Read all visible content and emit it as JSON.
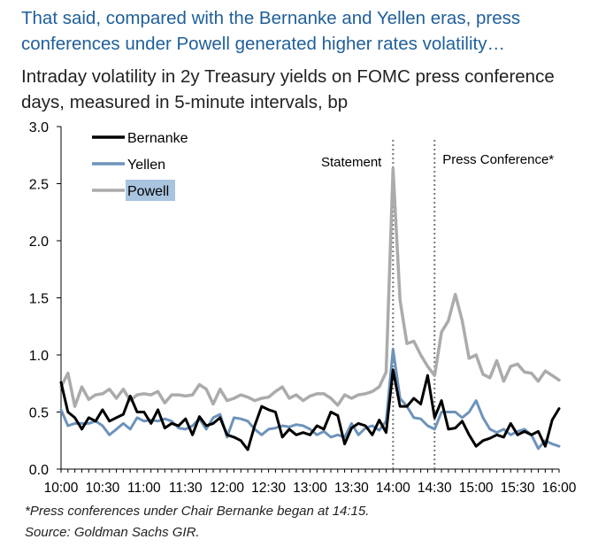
{
  "header": {
    "title": "That said, compared with the Bernanke and Yellen eras, press conferences under Powell generated higher rates volatility…",
    "subtitle": "Intraday volatility in 2y Treasury yields on FOMC press conference days, measured in 5-minute intervals, bp"
  },
  "footer": {
    "note": "*Press conferences under Chair Bernanke began at 14:15.",
    "source": "Source: Goldman Sachs GIR."
  },
  "chart_data": {
    "type": "line",
    "title": "That said, compared with the Bernanke and Yellen eras, press conferences under Powell generated higher rates volatility…",
    "subtitle": "Intraday volatility in 2y Treasury yields on FOMC press conference days, measured in 5-minute intervals, bp",
    "xlabel": "",
    "ylabel": "",
    "ylim": [
      0,
      3.0
    ],
    "yticks": [
      "0.0",
      "0.5",
      "1.0",
      "1.5",
      "2.0",
      "2.5",
      "3.0"
    ],
    "xticks": [
      "10:00",
      "10:30",
      "11:00",
      "11:30",
      "12:00",
      "12:30",
      "13:00",
      "13:30",
      "14:00",
      "14:30",
      "15:00",
      "15:30",
      "16:00"
    ],
    "x": [
      "10:00",
      "10:05",
      "10:10",
      "10:15",
      "10:20",
      "10:25",
      "10:30",
      "10:35",
      "10:40",
      "10:45",
      "10:50",
      "10:55",
      "11:00",
      "11:05",
      "11:10",
      "11:15",
      "11:20",
      "11:25",
      "11:30",
      "11:35",
      "11:40",
      "11:45",
      "11:50",
      "11:55",
      "12:00",
      "12:05",
      "12:10",
      "12:15",
      "12:20",
      "12:25",
      "12:30",
      "12:35",
      "12:40",
      "12:45",
      "12:50",
      "12:55",
      "13:00",
      "13:05",
      "13:10",
      "13:15",
      "13:20",
      "13:25",
      "13:30",
      "13:35",
      "13:40",
      "13:45",
      "13:50",
      "13:55",
      "14:00",
      "14:05",
      "14:10",
      "14:15",
      "14:20",
      "14:25",
      "14:30",
      "14:35",
      "14:40",
      "14:45",
      "14:50",
      "14:55",
      "15:00",
      "15:05",
      "15:10",
      "15:15",
      "15:20",
      "15:25",
      "15:30",
      "15:35",
      "15:40",
      "15:45",
      "15:50",
      "15:55",
      "16:00"
    ],
    "series": [
      {
        "name": "Bernanke",
        "color": "#000000",
        "width": 3,
        "values": [
          0.76,
          0.5,
          0.45,
          0.35,
          0.45,
          0.42,
          0.52,
          0.42,
          0.45,
          0.48,
          0.64,
          0.5,
          0.5,
          0.4,
          0.52,
          0.36,
          0.4,
          0.38,
          0.44,
          0.3,
          0.46,
          0.38,
          0.4,
          0.45,
          0.3,
          0.28,
          0.25,
          0.17,
          0.38,
          0.55,
          0.52,
          0.5,
          0.28,
          0.35,
          0.3,
          0.32,
          0.3,
          0.38,
          0.35,
          0.5,
          0.47,
          0.22,
          0.36,
          0.4,
          0.38,
          0.3,
          0.43,
          0.32,
          0.87,
          0.55,
          0.55,
          0.62,
          0.57,
          0.82,
          0.45,
          0.6,
          0.35,
          0.36,
          0.42,
          0.3,
          0.2,
          0.25,
          0.27,
          0.3,
          0.28,
          0.4,
          0.3,
          0.33,
          0.3,
          0.33,
          0.2,
          0.43,
          0.53
        ]
      },
      {
        "name": "Yellen",
        "color": "#6d93bb",
        "width": 3,
        "values": [
          0.52,
          0.38,
          0.4,
          0.4,
          0.4,
          0.42,
          0.38,
          0.3,
          0.35,
          0.4,
          0.35,
          0.45,
          0.42,
          0.43,
          0.42,
          0.44,
          0.42,
          0.36,
          0.35,
          0.38,
          0.44,
          0.35,
          0.45,
          0.48,
          0.28,
          0.45,
          0.44,
          0.42,
          0.35,
          0.3,
          0.35,
          0.36,
          0.38,
          0.37,
          0.39,
          0.38,
          0.35,
          0.3,
          0.33,
          0.28,
          0.3,
          0.28,
          0.4,
          0.3,
          0.36,
          0.38,
          0.34,
          0.42,
          1.05,
          0.62,
          0.55,
          0.45,
          0.44,
          0.38,
          0.35,
          0.5,
          0.5,
          0.5,
          0.45,
          0.5,
          0.6,
          0.45,
          0.35,
          0.32,
          0.35,
          0.3,
          0.33,
          0.35,
          0.3,
          0.18,
          0.25,
          0.22,
          0.2
        ]
      },
      {
        "name": "Powell",
        "color": "#ababab",
        "width": 3.5,
        "values": [
          0.72,
          0.84,
          0.55,
          0.72,
          0.61,
          0.65,
          0.66,
          0.7,
          0.62,
          0.7,
          0.6,
          0.65,
          0.66,
          0.65,
          0.68,
          0.58,
          0.65,
          0.65,
          0.64,
          0.65,
          0.74,
          0.7,
          0.57,
          0.7,
          0.6,
          0.62,
          0.65,
          0.63,
          0.6,
          0.62,
          0.63,
          0.68,
          0.72,
          0.62,
          0.65,
          0.6,
          0.64,
          0.66,
          0.66,
          0.62,
          0.56,
          0.65,
          0.62,
          0.65,
          0.66,
          0.68,
          0.72,
          0.85,
          2.63,
          1.48,
          1.1,
          1.12,
          1.0,
          0.9,
          0.82,
          1.2,
          1.3,
          1.53,
          1.3,
          0.97,
          1.0,
          0.83,
          0.8,
          0.95,
          0.77,
          0.9,
          0.92,
          0.85,
          0.84,
          0.77,
          0.86,
          0.82,
          0.78
        ]
      }
    ],
    "annotations": [
      {
        "at": "14:00",
        "label": "Statement",
        "style": "dotted-vertical"
      },
      {
        "at": "14:30",
        "label": "Press Conference*",
        "style": "dotted-vertical"
      }
    ],
    "legend": {
      "placement": "top-left",
      "highlighted": "Powell",
      "highlight_color": "#a9c4df"
    },
    "grid": false
  }
}
